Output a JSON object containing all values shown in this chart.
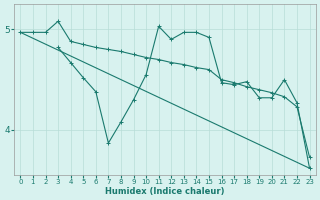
{
  "xlabel": "Humidex (Indice chaleur)",
  "xlim": [
    -0.5,
    23.5
  ],
  "ylim": [
    3.55,
    5.25
  ],
  "yticks": [
    4,
    5
  ],
  "xticks": [
    0,
    1,
    2,
    3,
    4,
    5,
    6,
    7,
    8,
    9,
    10,
    11,
    12,
    13,
    14,
    15,
    16,
    17,
    18,
    19,
    20,
    21,
    22,
    23
  ],
  "bg_color": "#d8f2ef",
  "line_color": "#1a7a6e",
  "grid_color": "#b8ddd8",
  "lines": [
    {
      "x": [
        0,
        1,
        2,
        23
      ],
      "y": [
        4.97,
        4.97,
        4.97,
        3.62
      ],
      "marker": null,
      "has_markers_at": []
    },
    {
      "x": [
        0,
        1,
        2,
        3,
        10,
        11,
        14,
        15,
        16,
        17,
        18,
        19,
        20,
        23
      ],
      "y": [
        4.97,
        4.97,
        4.97,
        4.97,
        4.82,
        4.78,
        4.73,
        4.7,
        4.6,
        4.58,
        4.55,
        4.5,
        4.48,
        3.62
      ],
      "marker": "+"
    },
    {
      "x": [
        3,
        4,
        5,
        6,
        7,
        8,
        9,
        10,
        11,
        12,
        13,
        14,
        15,
        16,
        17,
        18,
        19,
        20,
        21,
        22,
        23
      ],
      "y": [
        4.82,
        4.67,
        4.52,
        4.38,
        3.87,
        4.08,
        4.3,
        4.55,
        5.03,
        4.9,
        4.97,
        4.97,
        4.92,
        4.47,
        4.45,
        4.48,
        4.32,
        4.32,
        4.5,
        4.27,
        3.62
      ],
      "marker": "+"
    }
  ],
  "line1": {
    "x": [
      0,
      23
    ],
    "y": [
      4.97,
      3.62
    ]
  },
  "line2": {
    "x": [
      0,
      1,
      2,
      3,
      4,
      5,
      6,
      7,
      8,
      9,
      10,
      11,
      12,
      13,
      14,
      15,
      16,
      17,
      18,
      19,
      20,
      21,
      22,
      23
    ],
    "y": [
      4.97,
      4.97,
      4.97,
      5.08,
      4.88,
      4.85,
      4.82,
      4.8,
      4.78,
      4.75,
      4.72,
      4.7,
      4.67,
      4.65,
      4.62,
      4.6,
      4.5,
      4.47,
      4.43,
      4.4,
      4.37,
      4.33,
      4.23,
      3.73
    ]
  }
}
